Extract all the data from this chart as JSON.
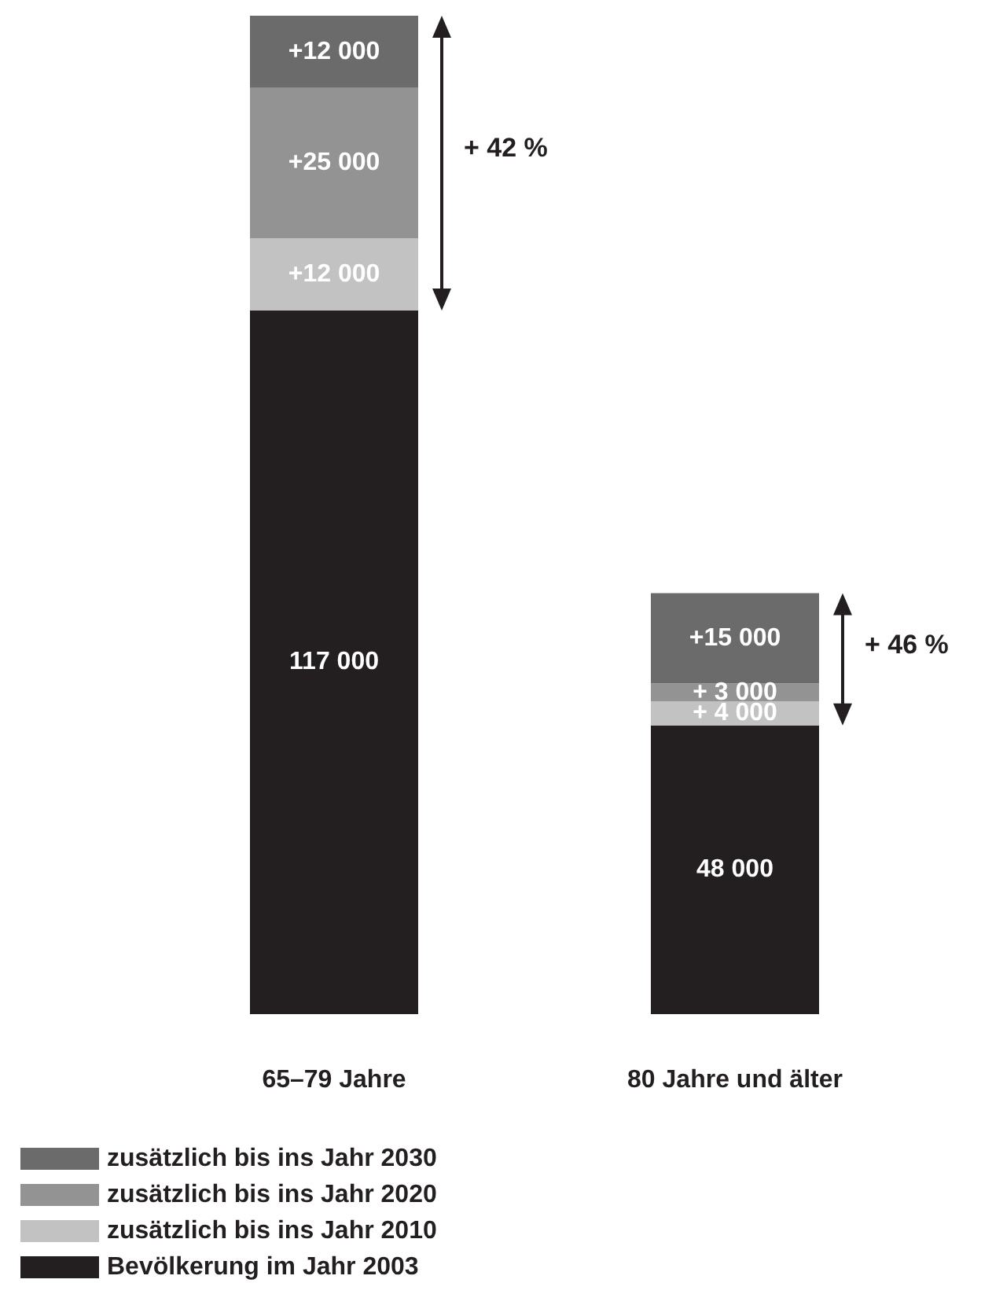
{
  "chart_data": {
    "type": "bar",
    "stacked": true,
    "categories": [
      "65–79 Jahre",
      "80 Jahre und älter"
    ],
    "series": [
      {
        "name": "Bevölkerung im Jahr 2003",
        "color": "#231f20",
        "values": [
          117000,
          48000
        ],
        "value_labels": [
          "117 000",
          "48 000"
        ]
      },
      {
        "name": "zusätzlich bis ins Jahr 2010",
        "color": "#c2c2c2",
        "values": [
          12000,
          4000
        ],
        "value_labels": [
          "+12 000",
          "+ 4 000"
        ]
      },
      {
        "name": "zusätzlich bis ins Jahr 2020",
        "color": "#939393",
        "values": [
          25000,
          3000
        ],
        "value_labels": [
          "+25 000",
          "+ 3 000"
        ]
      },
      {
        "name": "zusätzlich bis ins Jahr 2030",
        "color": "#6b6b6b",
        "values": [
          12000,
          15000
        ],
        "value_labels": [
          "+12 000",
          "+15 000"
        ]
      }
    ],
    "annotations": [
      "+ 42 %",
      "+ 46 %"
    ],
    "legend": "bottom left"
  }
}
